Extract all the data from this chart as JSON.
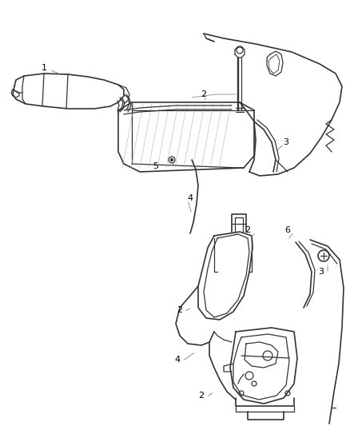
{
  "bg_color": "#ffffff",
  "line_color": "#333333",
  "label_color": "#000000",
  "fig_width": 4.38,
  "fig_height": 5.33,
  "dpi": 100
}
